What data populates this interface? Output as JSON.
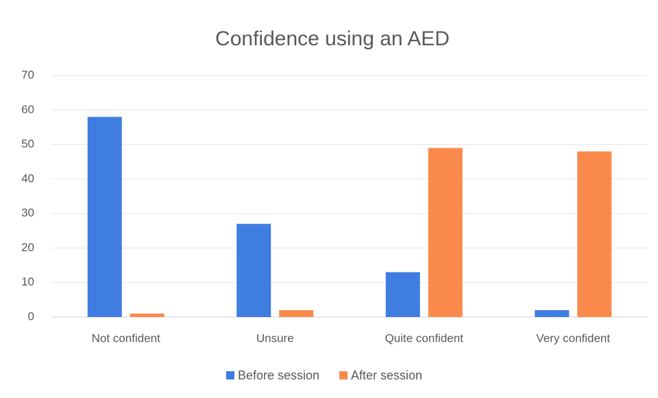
{
  "chart_data": {
    "type": "bar",
    "title": "Confidence using an AED",
    "categories": [
      "Not confident",
      "Unsure",
      "Quite confident",
      "Very confident"
    ],
    "series": [
      {
        "name": "Before session",
        "color": "#3f7de0",
        "values": [
          58,
          27,
          13,
          2
        ]
      },
      {
        "name": "After session",
        "color": "#f98a4c",
        "values": [
          1,
          2,
          49,
          48
        ]
      }
    ],
    "ylim": [
      0,
      70
    ],
    "yticks": [
      0,
      10,
      20,
      30,
      40,
      50,
      60,
      70
    ],
    "grid": true,
    "legend": "bottom"
  }
}
